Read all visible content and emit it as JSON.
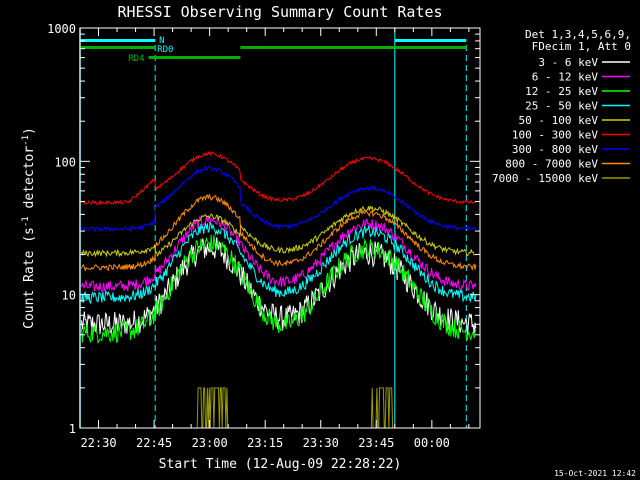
{
  "chart_data": {
    "type": "line",
    "title": "RHESSI Observing Summary Count Rates",
    "xlabel": "Start Time (12-Aug-09 22:28:22)",
    "ylabel_main": "Count Rate (s",
    "ylabel_sup1": "-1",
    "ylabel_mid": " detector",
    "ylabel_sup2": "-1",
    "ylabel_end": ")",
    "y_scale": "log",
    "ylim": [
      1,
      1000
    ],
    "xlim_minutes": [
      -5,
      103
    ],
    "x_tick_labels": [
      "22:30",
      "22:45",
      "23:00",
      "23:15",
      "23:30",
      "23:45",
      "00:00"
    ],
    "x_tick_minutes": [
      0,
      15,
      30,
      45,
      60,
      75,
      90
    ],
    "y_tick_labels": [
      "1",
      "10",
      "100",
      "1000"
    ],
    "y_tick_values": [
      1,
      10,
      100,
      1000
    ],
    "legend_header": [
      "Det 1,3,4,5,6,9,",
      "FDecim 1, Att 0"
    ],
    "legend_position": "right",
    "series": [
      {
        "name": "3 - 6 keV",
        "color": "#ffffff"
      },
      {
        "name": "6 - 12 keV",
        "color": "#ff00ff"
      },
      {
        "name": "12 - 25 keV",
        "color": "#00ff00"
      },
      {
        "name": "25 - 50 keV",
        "color": "#00ffff"
      },
      {
        "name": "50 - 100 keV",
        "color": "#cccc00"
      },
      {
        "name": "100 - 300 keV",
        "color": "#ff0000"
      },
      {
        "name": "300 - 800 keV",
        "color": "#0000ff"
      },
      {
        "name": "800 - 7000 keV",
        "color": "#ff8c00"
      },
      {
        "name": "7000 - 15000 keV",
        "color": "#999900"
      }
    ],
    "flags": [
      {
        "label": "N",
        "color": "#00ffff"
      },
      {
        "label": "RD0",
        "color": "#00ffff"
      },
      {
        "label": "RD4",
        "color": "#00b000"
      }
    ],
    "timestamp": "15-Oct-2021 12:42"
  }
}
